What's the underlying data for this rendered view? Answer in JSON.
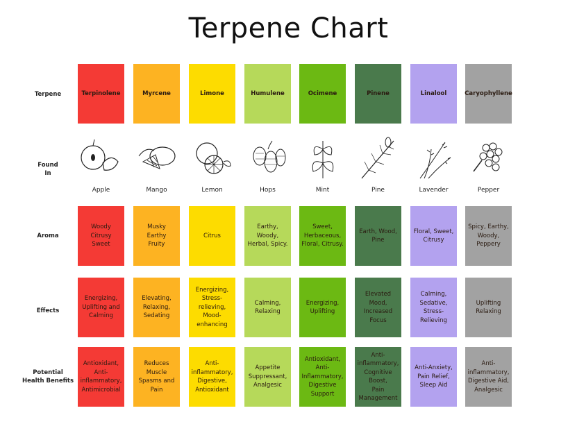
{
  "title": "Terpene Chart",
  "row_labels": {
    "terpene": "Terpene",
    "found_in": "Found\nIn",
    "aroma": "Aroma",
    "effects": "Effects",
    "benefits": "Potential\nHealth Benefits"
  },
  "terpenes": [
    {
      "name": "Terpinolene",
      "color": "#f43a35",
      "found_in": "Apple",
      "icon": "apple-icon",
      "aroma": "Woody\nCitrusy\nSweet",
      "effects": "Energizing,\nUplifting and\nCalming",
      "benefits": "Antioxidant,\nAnti-\ninflammatory,\nAntimicrobial"
    },
    {
      "name": "Myrcene",
      "color": "#fdb322",
      "found_in": "Mango",
      "icon": "mango-icon",
      "aroma": "Musky\nEarthy\nFruity",
      "effects": "Elevating,\nRelaxing,\nSedating",
      "benefits": "Reduces Muscle\nSpasms and\nPain"
    },
    {
      "name": "Limone",
      "color": "#fddc00",
      "found_in": "Lemon",
      "icon": "lemon-icon",
      "aroma": "Citrus",
      "effects": "Energizing,\nStress-relieving,\nMood-enhancing",
      "benefits": "Anti-\ninflammatory,\nDigestive,\nAntioxidant"
    },
    {
      "name": "Humulene",
      "color": "#b6d95a",
      "found_in": "Hops",
      "icon": "hops-icon",
      "aroma": "Earthy, Woody,\nHerbal, Spicy.",
      "effects": "Calming,\nRelaxing",
      "benefits": "Appetite\nSuppressant,\nAnalgesic"
    },
    {
      "name": "Ocimene",
      "color": "#6cb913",
      "found_in": "Mint",
      "icon": "mint-icon",
      "aroma": "Sweet,\nHerbaceous,\nFloral, Citrusy.",
      "effects": "Energizing,\nUplifting",
      "benefits": "Antioxidant,\nAnti-\nInflammatory,\nDigestive\nSupport"
    },
    {
      "name": "Pinene",
      "color": "#4a7a4c",
      "found_in": "Pine",
      "icon": "pine-icon",
      "aroma": "Earth, Wood,\nPine",
      "effects": "Elevated Mood,\nIncreased Focus",
      "benefits": "Anti-\ninflammatory,\nCognitive Boost,\nPain\nManagement"
    },
    {
      "name": "Linalool",
      "color": "#b3a2ef",
      "found_in": "Lavender",
      "icon": "lavender-icon",
      "aroma": "Floral, Sweet,\nCitrusy",
      "effects": "Calming,\nSedative, Stress-\nRelieving",
      "benefits": "Anti-Anxiety,\nPain Relief,\nSleep Aid"
    },
    {
      "name": "Caryophyllene",
      "color": "#a2a2a2",
      "found_in": "Pepper",
      "icon": "pepper-icon",
      "aroma": "Spicy, Earthy,\nWoody, Peppery",
      "effects": "Uplifting\nRelaxing",
      "benefits": "Anti-\ninflammatory,\nDigestive Aid,\nAnalgesic"
    }
  ]
}
